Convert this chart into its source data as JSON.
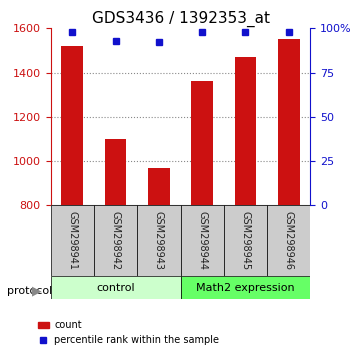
{
  "title": "GDS3436 / 1392353_at",
  "samples": [
    "GSM298941",
    "GSM298942",
    "GSM298943",
    "GSM298944",
    "GSM298945",
    "GSM298946"
  ],
  "counts": [
    1520,
    1100,
    970,
    1360,
    1470,
    1550
  ],
  "percentiles": [
    98,
    93,
    92,
    98,
    98,
    98
  ],
  "ylim_left": [
    800,
    1600
  ],
  "ylim_right": [
    0,
    100
  ],
  "yticks_left": [
    800,
    1000,
    1200,
    1400,
    1600
  ],
  "yticks_right": [
    0,
    25,
    50,
    75,
    100
  ],
  "ytick_right_labels": [
    "0",
    "25",
    "50",
    "75",
    "100%"
  ],
  "bar_color": "#cc1111",
  "dot_color": "#1111cc",
  "bar_width": 0.5,
  "groups": [
    {
      "label": "control",
      "indices": [
        0,
        1,
        2
      ],
      "color": "#ccffcc"
    },
    {
      "label": "Math2 expression",
      "indices": [
        3,
        4,
        5
      ],
      "color": "#66ff66"
    }
  ],
  "protocol_label": "protocol",
  "legend_count_label": "count",
  "legend_percentile_label": "percentile rank within the sample",
  "title_fontsize": 11,
  "tick_fontsize": 8,
  "sample_label_color": "#222222",
  "bg_color": "#ffffff",
  "plot_bg_color": "#ffffff",
  "left_axis_color": "#cc1111",
  "right_axis_color": "#1111cc",
  "grid_color": "#888888"
}
